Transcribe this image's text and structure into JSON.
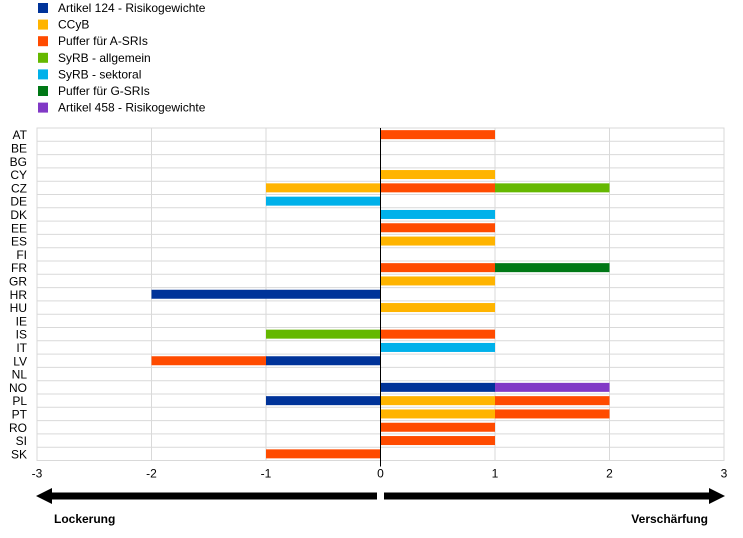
{
  "chart_data": {
    "type": "bar",
    "orientation": "horizontal",
    "stacked": true,
    "categories": [
      "AT",
      "BE",
      "BG",
      "CY",
      "CZ",
      "DE",
      "DK",
      "EE",
      "ES",
      "FI",
      "FR",
      "GR",
      "HR",
      "HU",
      "IE",
      "IS",
      "IT",
      "LV",
      "NL",
      "NO",
      "PL",
      "PT",
      "RO",
      "SI",
      "SK"
    ],
    "series": [
      {
        "name": "Artikel 124 - Risikogewichte",
        "color": "#003399",
        "values": [
          0,
          0,
          0,
          0,
          0,
          0,
          0,
          0,
          0,
          0,
          0,
          0,
          -2,
          0,
          0,
          0,
          0,
          -1,
          0,
          1,
          -1,
          0,
          0,
          0,
          0
        ]
      },
      {
        "name": "CCyB",
        "color": "#ffb400",
        "values": [
          0,
          0,
          0,
          1,
          -1,
          0,
          0,
          0,
          1,
          0,
          0,
          1,
          0,
          1,
          0,
          0,
          0,
          0,
          0,
          0,
          1,
          1,
          0,
          0,
          0
        ]
      },
      {
        "name": "Puffer für A-SRIs",
        "color": "#ff4b00",
        "values": [
          1,
          0,
          0,
          0,
          1,
          0,
          0,
          1,
          0,
          0,
          1,
          0,
          0,
          0,
          0,
          1,
          0,
          -1,
          0,
          0,
          1,
          1,
          1,
          1,
          -1
        ]
      },
      {
        "name": "SyRB - allgemein",
        "color": "#65b800",
        "values": [
          0,
          0,
          0,
          0,
          1,
          0,
          0,
          0,
          0,
          0,
          0,
          0,
          0,
          0,
          0,
          -1,
          0,
          0,
          0,
          0,
          0,
          0,
          0,
          0,
          0
        ]
      },
      {
        "name": "SyRB - sektoral",
        "color": "#00b1ea",
        "values": [
          0,
          0,
          0,
          0,
          0,
          -1,
          1,
          0,
          0,
          0,
          0,
          0,
          0,
          0,
          0,
          0,
          1,
          0,
          0,
          0,
          0,
          0,
          0,
          0,
          0
        ]
      },
      {
        "name": "Puffer für G-SRIs",
        "color": "#007816",
        "values": [
          0,
          0,
          0,
          0,
          0,
          0,
          0,
          0,
          0,
          0,
          1,
          0,
          0,
          0,
          0,
          0,
          0,
          0,
          0,
          0,
          0,
          0,
          0,
          0,
          0
        ]
      },
      {
        "name": "Artikel 458 - Risikogewichte",
        "color": "#8139c6",
        "values": [
          0,
          0,
          0,
          0,
          0,
          0,
          0,
          0,
          0,
          0,
          0,
          0,
          0,
          0,
          0,
          0,
          0,
          0,
          0,
          1,
          0,
          0,
          0,
          0,
          0
        ]
      }
    ],
    "xlim": [
      -3,
      3
    ],
    "xticks": [
      "-3",
      "-2",
      "-1",
      "0",
      "1",
      "2",
      "3"
    ],
    "grid": true,
    "legend_position": "top-left",
    "arrow_left_label": "Lockerung",
    "arrow_right_label": "Verschärfung"
  }
}
